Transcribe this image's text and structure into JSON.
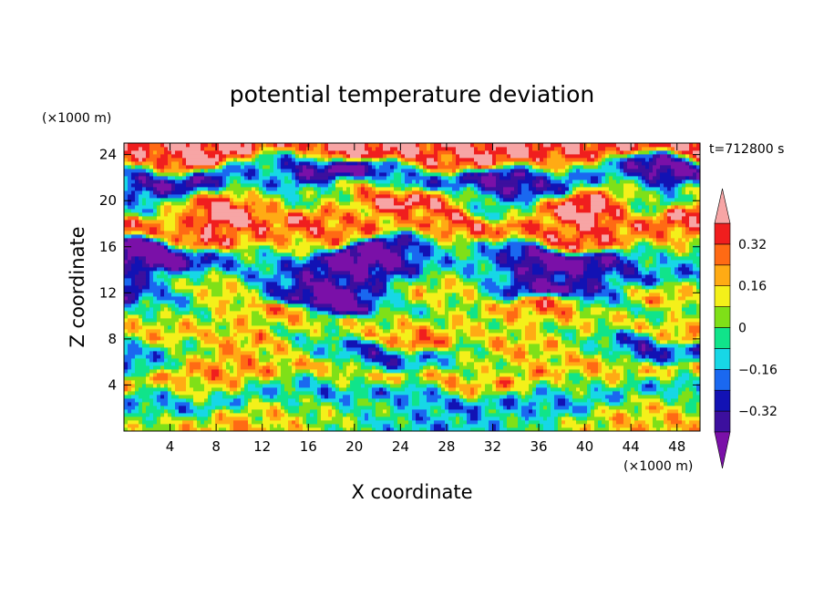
{
  "chart_data": {
    "type": "heatmap",
    "title": "potential temperature deviation",
    "xlabel": "X coordinate",
    "ylabel": "Z coordinate",
    "x_unit": "(×1000 m)",
    "y_unit": "(×1000 m)",
    "time_label": "t=712800 s",
    "xlim": [
      0,
      50
    ],
    "ylim": [
      0,
      25
    ],
    "x_ticks": [
      4,
      8,
      12,
      16,
      20,
      24,
      28,
      32,
      36,
      40,
      44,
      48
    ],
    "y_ticks": [
      4,
      8,
      12,
      16,
      20,
      24
    ],
    "colorbar": {
      "levels": [
        -0.4,
        -0.32,
        -0.24,
        -0.16,
        -0.08,
        0,
        0.08,
        0.16,
        0.24,
        0.32,
        0.4
      ],
      "tick_values": [
        -0.32,
        -0.16,
        0,
        0.16,
        0.32
      ],
      "tick_labels": [
        "−0.32",
        "−0.16",
        "0",
        "0.16",
        "0.32"
      ],
      "colors": [
        "#7a10a8",
        "#3c0f9e",
        "#1212b4",
        "#1a68f0",
        "#17d7e6",
        "#10e48a",
        "#7fe018",
        "#f4f01a",
        "#ffab14",
        "#ff6a14",
        "#f01e1e",
        "#f7a5a5"
      ],
      "extend": "both"
    },
    "bands": [
      {
        "z": 1.5,
        "mean": 0.02,
        "amp": 0.16
      },
      {
        "z": 3.5,
        "mean": -0.36,
        "amp": 0.1
      },
      {
        "z": 4.3,
        "mean": 0.36,
        "amp": 0.1
      },
      {
        "z": 6.5,
        "mean": -0.05,
        "amp": 0.25
      },
      {
        "z": 9.5,
        "mean": 0.1,
        "amp": 0.32
      },
      {
        "z": 12.5,
        "mean": -0.15,
        "amp": 0.38
      },
      {
        "z": 15.0,
        "mean": -0.3,
        "amp": 0.25
      },
      {
        "z": 17.5,
        "mean": 0.28,
        "amp": 0.22
      },
      {
        "z": 20.0,
        "mean": 0.2,
        "amp": 0.3
      },
      {
        "z": 22.0,
        "mean": -0.32,
        "amp": 0.2
      },
      {
        "z": 24.5,
        "mean": 0.4,
        "amp": 0.1
      }
    ]
  }
}
